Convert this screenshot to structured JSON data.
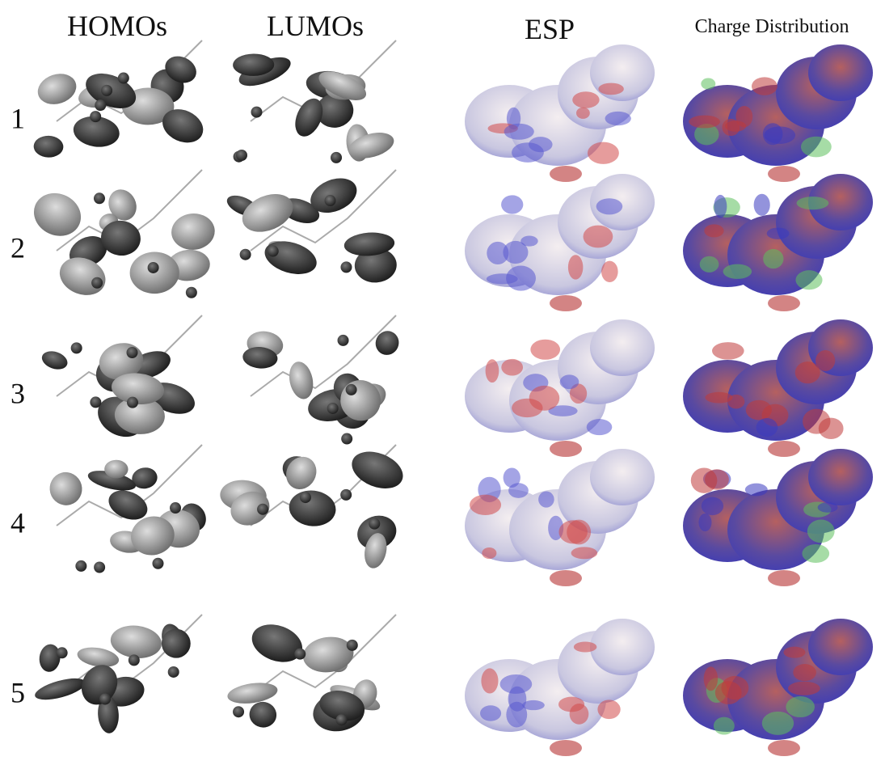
{
  "header": {
    "columns": [
      "HOMOs",
      "LUMOs",
      "ESP",
      "Charge Distribution"
    ]
  },
  "rows": [
    "1",
    "2",
    "3",
    "4",
    "5"
  ]
}
